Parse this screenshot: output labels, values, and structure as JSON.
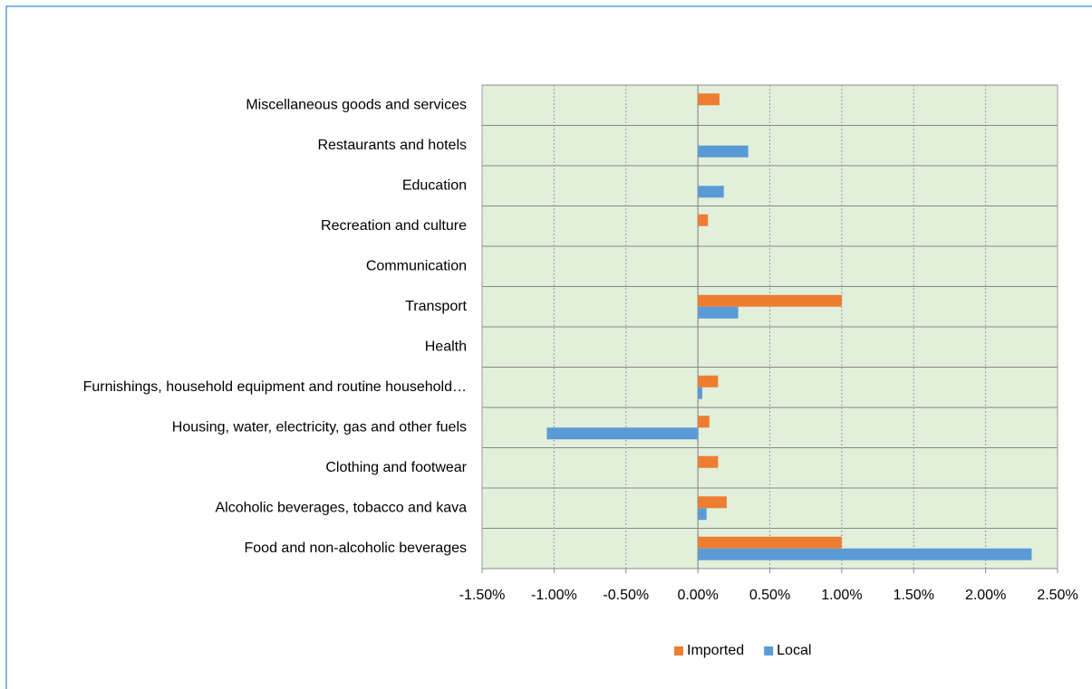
{
  "chart_data": {
    "type": "bar",
    "orientation": "horizontal",
    "categories": [
      "Food and non-alcoholic beverages",
      "Alcoholic beverages, tobacco and kava",
      "Clothing and footwear",
      "Housing, water, electricity, gas and other fuels",
      "Furnishings, household equipment and routine household…",
      "Health",
      "Transport",
      "Communication",
      "Recreation and culture",
      "Education",
      "Restaurants and hotels",
      "Miscellaneous goods and services"
    ],
    "series": [
      {
        "name": "Imported",
        "color": "#ed7d31",
        "values": [
          1.0,
          0.2,
          0.14,
          0.08,
          0.14,
          0,
          1.0,
          0,
          0.07,
          0,
          0,
          0.15
        ]
      },
      {
        "name": "Local",
        "color": "#5b9bd5",
        "values": [
          2.32,
          0.06,
          0,
          -1.05,
          0.03,
          0,
          0.28,
          0,
          0,
          0.18,
          0.35,
          0
        ]
      }
    ],
    "xlim": [
      -1.5,
      2.5
    ],
    "xticks": [
      {
        "value": -1.5,
        "label": "-1.50%"
      },
      {
        "value": -1.0,
        "label": "-1.00%"
      },
      {
        "value": -0.5,
        "label": "-0.50%"
      },
      {
        "value": 0,
        "label": "0.00%"
      },
      {
        "value": 0.5,
        "label": "0.50%"
      },
      {
        "value": 1.0,
        "label": "1.00%"
      },
      {
        "value": 1.5,
        "label": "1.50%"
      },
      {
        "value": 2.0,
        "label": "2.00%"
      },
      {
        "value": 2.5,
        "label": "2.50%"
      }
    ],
    "grid": true,
    "plot_background": "#e2efda",
    "legend": "bottom"
  }
}
